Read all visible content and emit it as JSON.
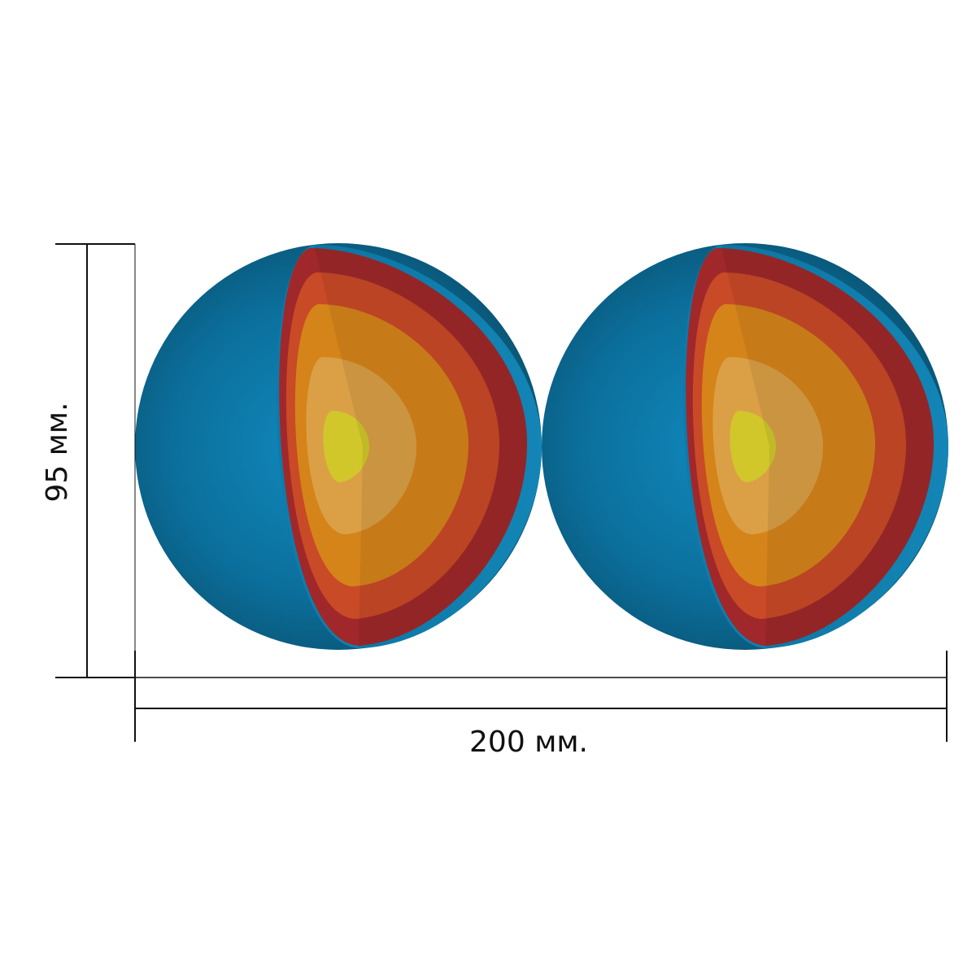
{
  "dimensions": {
    "height_label": "95 мм.",
    "width_label": "200 мм."
  },
  "spheres": [
    {
      "name": "sphere-left"
    },
    {
      "name": "sphere-right"
    }
  ],
  "colors": {
    "shell_blue": "#0b6f9c",
    "shell_blue_light": "#1189bd",
    "shell_blue_dark": "#0a5677",
    "crust_red": "#a0282b",
    "mantle_orange_red": "#c94a26",
    "outer_core_orange": "#d5841a",
    "inner_core_tan": "#dba046",
    "core_yellow": "#d1c72a",
    "line_color": "#111111"
  }
}
